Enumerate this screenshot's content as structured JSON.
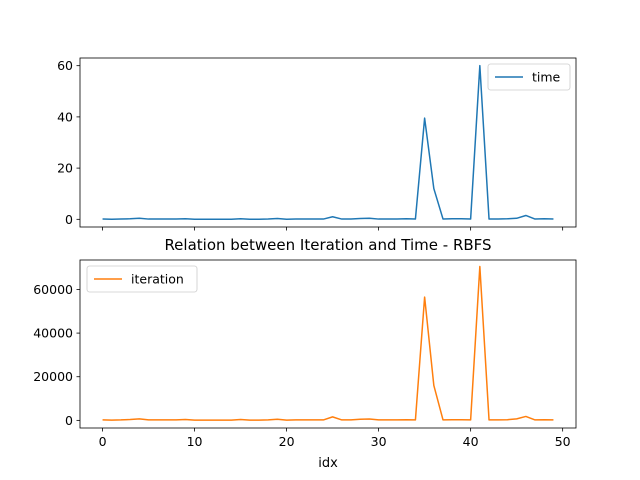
{
  "figure": {
    "title": "Relation between Iteration and Time - RBFS",
    "xlabel": "idx"
  },
  "chart_data": [
    {
      "type": "line",
      "title": "",
      "xlabel": "",
      "ylabel": "",
      "xlim": [
        -2.45,
        51.45
      ],
      "ylim": [
        -3,
        63
      ],
      "x_ticks": [
        0,
        10,
        20,
        30,
        40,
        50
      ],
      "x_tick_labels_shown": false,
      "y_ticks": [
        0,
        20,
        40,
        60
      ],
      "y_tick_labels": [
        "0",
        "20",
        "40",
        "60"
      ],
      "legend": {
        "position": "top-right"
      },
      "grid": false,
      "series": [
        {
          "name": "time",
          "color": "#1f77b4",
          "x": [
            0,
            1,
            2,
            3,
            4,
            5,
            6,
            7,
            8,
            9,
            10,
            11,
            12,
            13,
            14,
            15,
            16,
            17,
            18,
            19,
            20,
            21,
            22,
            23,
            24,
            25,
            26,
            27,
            28,
            29,
            30,
            31,
            32,
            33,
            34,
            35,
            36,
            37,
            38,
            39,
            40,
            41,
            42,
            43,
            44,
            45,
            46,
            47,
            48,
            49
          ],
          "values": [
            0.1,
            0.05,
            0.1,
            0.2,
            0.4,
            0.1,
            0.1,
            0.1,
            0.1,
            0.2,
            0.05,
            0.05,
            0.05,
            0.05,
            0.05,
            0.2,
            0.05,
            0.05,
            0.1,
            0.3,
            0.05,
            0.1,
            0.1,
            0.1,
            0.1,
            1.0,
            0.1,
            0.1,
            0.3,
            0.4,
            0.1,
            0.1,
            0.1,
            0.2,
            0.1,
            39.5,
            12.0,
            0.1,
            0.2,
            0.2,
            0.1,
            60.0,
            0.1,
            0.1,
            0.2,
            0.4,
            1.5,
            0.1,
            0.2,
            0.1
          ]
        }
      ]
    },
    {
      "type": "line",
      "title": "",
      "xlabel": "idx",
      "ylabel": "",
      "xlim": [
        -2.45,
        51.45
      ],
      "ylim": [
        -3500,
        73500
      ],
      "x_ticks": [
        0,
        10,
        20,
        30,
        40,
        50
      ],
      "x_tick_labels": [
        "0",
        "10",
        "20",
        "30",
        "40",
        "50"
      ],
      "y_ticks": [
        0,
        20000,
        40000,
        60000
      ],
      "y_tick_labels": [
        "0",
        "20000",
        "40000",
        "60000"
      ],
      "legend": {
        "position": "top-left"
      },
      "grid": false,
      "series": [
        {
          "name": "iteration",
          "color": "#ff7f0e",
          "x": [
            0,
            1,
            2,
            3,
            4,
            5,
            6,
            7,
            8,
            9,
            10,
            11,
            12,
            13,
            14,
            15,
            16,
            17,
            18,
            19,
            20,
            21,
            22,
            23,
            24,
            25,
            26,
            27,
            28,
            29,
            30,
            31,
            32,
            33,
            34,
            35,
            36,
            37,
            38,
            39,
            40,
            41,
            42,
            43,
            44,
            45,
            46,
            47,
            48,
            49
          ],
          "values": [
            200,
            100,
            200,
            400,
            700,
            200,
            200,
            200,
            200,
            400,
            100,
            100,
            100,
            100,
            100,
            400,
            100,
            100,
            200,
            500,
            100,
            200,
            200,
            200,
            200,
            1600,
            200,
            200,
            500,
            600,
            200,
            200,
            200,
            300,
            200,
            56500,
            16000,
            200,
            300,
            300,
            200,
            70500,
            200,
            200,
            300,
            700,
            1800,
            200,
            300,
            200
          ]
        }
      ]
    }
  ]
}
